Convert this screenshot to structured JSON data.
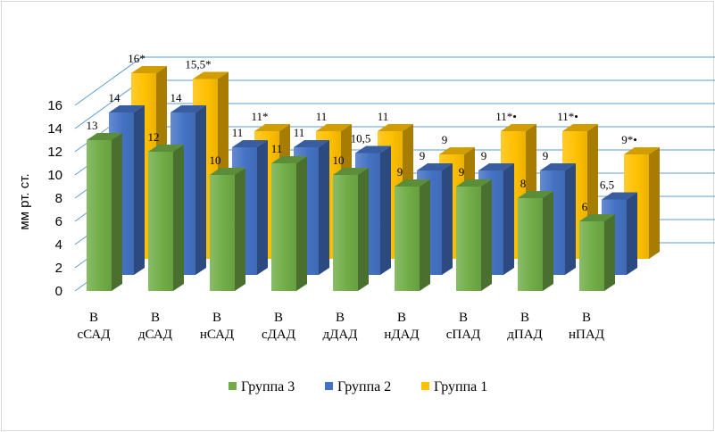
{
  "chart_data": {
    "type": "bar",
    "ylabel": "мм рт. ст.",
    "ylim": [
      0,
      16
    ],
    "yticks": [
      "0",
      "2",
      "4",
      "6",
      "8",
      "10",
      "12",
      "14",
      "16"
    ],
    "categories": [
      [
        "В",
        "сСАД"
      ],
      [
        "В",
        "дСАД"
      ],
      [
        "В",
        "нСАД"
      ],
      [
        "В",
        "сДАД"
      ],
      [
        "В",
        "дДАД"
      ],
      [
        "В",
        "нДАД"
      ],
      [
        "В",
        "сПАД"
      ],
      [
        "В",
        "дПАД"
      ],
      [
        "В",
        "нПАД"
      ]
    ],
    "series": [
      {
        "name": "Группа 3",
        "color": "#70ad47",
        "values": [
          13,
          12,
          10,
          11,
          10,
          9,
          9,
          8,
          6
        ],
        "labels": [
          "13",
          "12",
          "10",
          "11",
          "10",
          "9",
          "9",
          "8",
          "6"
        ]
      },
      {
        "name": "Группа 2",
        "color": "#4472c4",
        "values": [
          14,
          14,
          11,
          11,
          10.5,
          9,
          9,
          9,
          6.5
        ],
        "labels": [
          "14",
          "14",
          "11",
          "11",
          "10,5",
          "9",
          "9",
          "9",
          "6,5"
        ]
      },
      {
        "name": "Группа 1",
        "color": "#ffc000",
        "values": [
          16,
          15.5,
          11,
          11,
          11,
          9,
          11,
          11,
          9
        ],
        "labels": [
          "16*",
          "15,5*",
          "11*",
          "11",
          "11",
          "9",
          "11*•",
          "11*•",
          "9*•"
        ]
      }
    ],
    "grid": true,
    "legend": "bottom"
  }
}
